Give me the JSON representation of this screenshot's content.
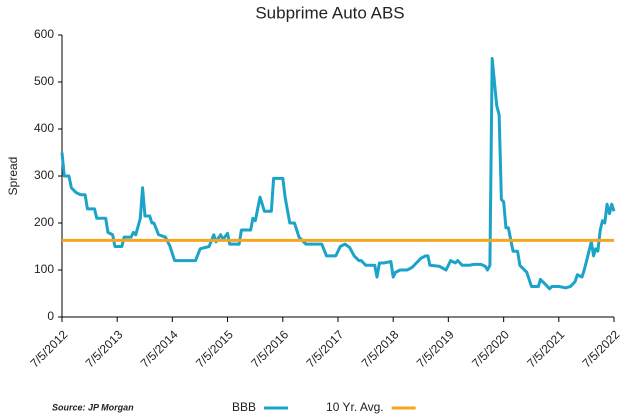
{
  "chart_data": {
    "type": "line",
    "title": "Subprime Auto ABS",
    "y_label": "Spread",
    "source": "Source: JP Morgan",
    "x": [
      "2012-07-05",
      "2012-07-20",
      "2012-08-20",
      "2012-09-05",
      "2012-10-05",
      "2012-11-05",
      "2012-12-05",
      "2012-12-20",
      "2013-02-05",
      "2013-02-20",
      "2013-04-20",
      "2013-05-05",
      "2013-06-05",
      "2013-06-20",
      "2013-08-05",
      "2013-08-20",
      "2013-10-05",
      "2013-10-20",
      "2013-11-05",
      "2013-12-05",
      "2013-12-20",
      "2014-01-05",
      "2014-02-05",
      "2014-02-20",
      "2014-03-05",
      "2014-04-05",
      "2014-05-20",
      "2014-06-20",
      "2014-07-20",
      "2014-12-05",
      "2015-01-05",
      "2015-03-05",
      "2015-04-05",
      "2015-04-20",
      "2015-05-20",
      "2015-06-05",
      "2015-07-05",
      "2015-07-20",
      "2015-09-20",
      "2015-10-05",
      "2015-12-05",
      "2015-12-20",
      "2016-01-05",
      "2016-02-05",
      "2016-02-20",
      "2016-03-05",
      "2016-04-20",
      "2016-05-05",
      "2016-07-05",
      "2016-07-20",
      "2016-08-20",
      "2016-09-20",
      "2016-10-20",
      "2016-12-05",
      "2017-03-20",
      "2017-04-20",
      "2017-06-20",
      "2017-07-20",
      "2017-08-20",
      "2017-09-20",
      "2017-10-20",
      "2017-11-20",
      "2017-12-05",
      "2018-01-05",
      "2018-03-05",
      "2018-03-20",
      "2018-04-05",
      "2018-05-05",
      "2018-06-20",
      "2018-07-05",
      "2018-07-20",
      "2018-08-20",
      "2018-10-05",
      "2018-11-05",
      "2019-01-05",
      "2019-02-05",
      "2019-02-20",
      "2019-03-05",
      "2019-05-05",
      "2019-06-20",
      "2019-07-20",
      "2019-08-20",
      "2019-09-05",
      "2019-10-05",
      "2019-11-20",
      "2019-12-20",
      "2020-02-05",
      "2020-03-05",
      "2020-03-20",
      "2020-04-05",
      "2020-04-20",
      "2020-05-05",
      "2020-05-20",
      "2020-06-05",
      "2020-06-20",
      "2020-07-05",
      "2020-07-20",
      "2020-08-05",
      "2020-09-05",
      "2020-10-05",
      "2020-10-20",
      "2020-12-05",
      "2021-01-05",
      "2021-02-20",
      "2021-03-05",
      "2021-04-05",
      "2021-05-05",
      "2021-05-20",
      "2021-07-05",
      "2021-08-20",
      "2021-09-20",
      "2021-10-20",
      "2021-11-05",
      "2021-12-05",
      "2021-12-20",
      "2022-01-05",
      "2022-02-05",
      "2022-02-20",
      "2022-03-05",
      "2022-03-20",
      "2022-04-05",
      "2022-04-20",
      "2022-05-05",
      "2022-05-20",
      "2022-06-05",
      "2022-06-20",
      "2022-07-05"
    ],
    "series": [
      {
        "name": "BBB",
        "color": "#1ba3c9",
        "values": [
          350,
          300,
          300,
          275,
          265,
          260,
          260,
          230,
          230,
          210,
          210,
          180,
          175,
          150,
          150,
          170,
          170,
          180,
          175,
          210,
          275,
          215,
          215,
          200,
          200,
          175,
          170,
          150,
          120,
          120,
          145,
          150,
          175,
          160,
          175,
          165,
          178,
          155,
          155,
          185,
          185,
          210,
          205,
          255,
          240,
          225,
          225,
          295,
          295,
          255,
          200,
          200,
          170,
          155,
          155,
          130,
          130,
          150,
          155,
          148,
          130,
          120,
          120,
          110,
          110,
          85,
          115,
          115,
          118,
          85,
          95,
          100,
          100,
          105,
          125,
          130,
          130,
          110,
          108,
          100,
          120,
          115,
          120,
          110,
          110,
          112,
          112,
          108,
          100,
          110,
          550,
          500,
          450,
          430,
          250,
          245,
          190,
          190,
          140,
          140,
          110,
          95,
          65,
          65,
          80,
          70,
          60,
          65,
          65,
          62,
          65,
          75,
          90,
          85,
          100,
          120,
          160,
          130,
          145,
          140,
          185,
          205,
          200,
          240,
          220,
          240,
          225
        ]
      }
    ],
    "reference_lines": [
      {
        "name": "10 Yr. Avg.",
        "value": 163,
        "color": "#f7a520"
      }
    ],
    "ylim": [
      0,
      600
    ],
    "yticks": [
      0,
      100,
      200,
      300,
      400,
      500,
      600
    ],
    "xlim": [
      "2012-07-05",
      "2022-07-05"
    ],
    "xticks": [
      {
        "value": "2012-07-05",
        "label": "7/5/2012"
      },
      {
        "value": "2013-07-05",
        "label": "7/5/2013"
      },
      {
        "value": "2014-07-05",
        "label": "7/5/2014"
      },
      {
        "value": "2015-07-05",
        "label": "7/5/2015"
      },
      {
        "value": "2016-07-05",
        "label": "7/5/2016"
      },
      {
        "value": "2017-07-05",
        "label": "7/5/2017"
      },
      {
        "value": "2018-07-05",
        "label": "7/5/2018"
      },
      {
        "value": "2019-07-05",
        "label": "7/5/2019"
      },
      {
        "value": "2020-07-05",
        "label": "7/5/2020"
      },
      {
        "value": "2021-07-05",
        "label": "7/5/2021"
      },
      {
        "value": "2022-07-05",
        "label": "7/5/2022"
      }
    ],
    "grid": false
  }
}
